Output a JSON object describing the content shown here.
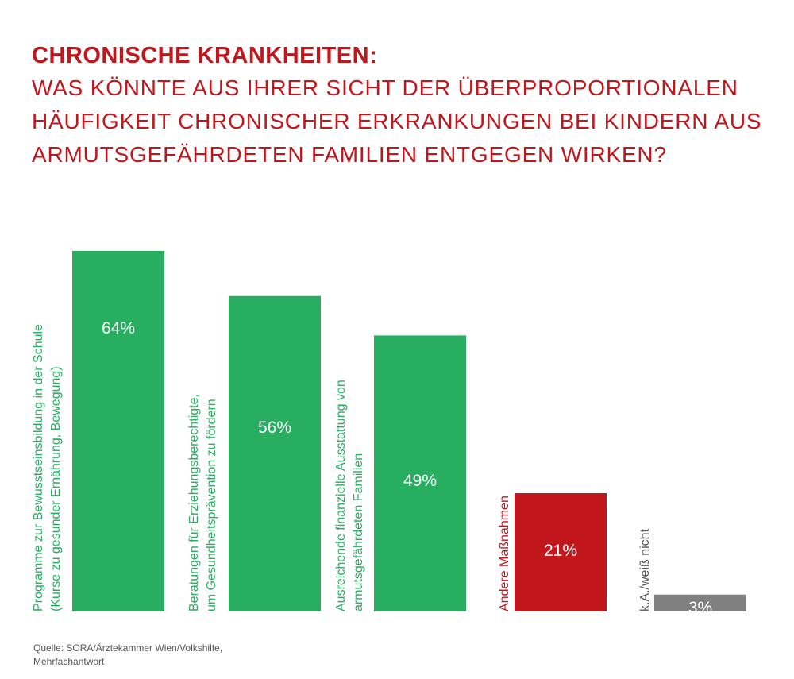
{
  "header": {
    "headline": "CHRONISCHE KRANKHEITEN:",
    "subtitle": "WAS KÖNNTE AUS IHRER SICHT DER ÜBERPROPORTIONALEN HÄUFIGKEIT CHRONISCHER ERKRANKUNGEN BEI KINDERN AUS ARMUTSGEFÄHRDETEN FAMILIEN ENTGEGEN WIRKEN?"
  },
  "chart_data": {
    "type": "bar",
    "categories": [
      [
        "Programme zur Bewusstseinsbildung in der Schule",
        "(Kurse zu gesunder Ernährung, Bewegung)"
      ],
      [
        "Beratungen für Erziehungsberechtigte,",
        "um Gesundheitsprävention zu fördern"
      ],
      [
        "Ausreichende finanzielle Ausstattung von",
        "armutsgefährdeten Familien"
      ],
      [
        "Andere Maßnahmen"
      ],
      [
        "k.A./weiß nicht"
      ]
    ],
    "values": [
      64,
      56,
      49,
      21,
      3
    ],
    "value_labels": [
      "64%",
      "56%",
      "49%",
      "21%",
      "3%"
    ],
    "colors": [
      "#27ae60",
      "#27ae60",
      "#27ae60",
      "#c0161c",
      "#808080"
    ],
    "label_colors": [
      "#27ae60",
      "#27ae60",
      "#27ae60",
      "#c0161c",
      "#555555"
    ],
    "ylim": [
      0,
      64
    ],
    "legend": "none",
    "grid": false
  },
  "source": {
    "line1": "Quelle: SORA/Ärztekammer Wien/Volkshilfe,",
    "line2": "Mehrfachantwort"
  }
}
